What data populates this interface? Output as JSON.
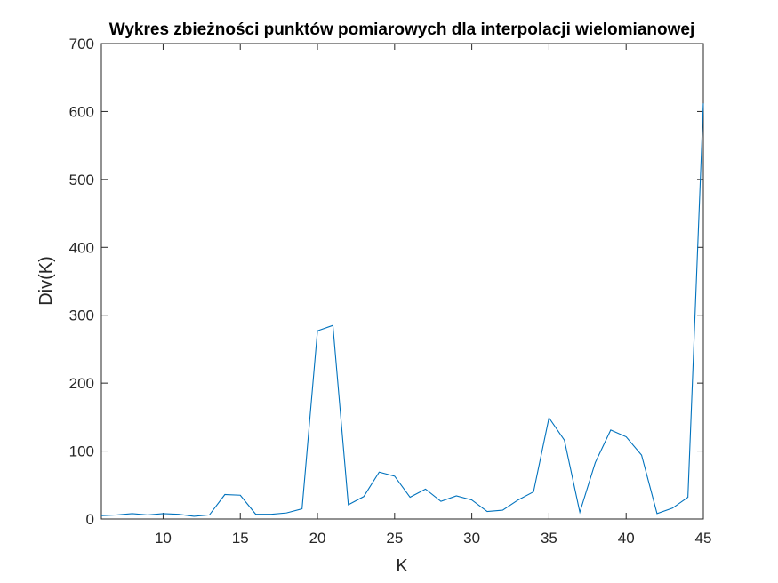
{
  "chart_data": {
    "type": "line",
    "title": "Wykres zbieżności punktów pomiarowych dla interpolacji wielomianowej",
    "xlabel": "K",
    "ylabel": "Div(K)",
    "xlim": [
      6,
      45
    ],
    "ylim": [
      0,
      700
    ],
    "xticks": [
      10,
      15,
      20,
      25,
      30,
      35,
      40,
      45
    ],
    "yticks": [
      0,
      100,
      200,
      300,
      400,
      500,
      600,
      700
    ],
    "grid": false,
    "series": [
      {
        "color": "#0072BD",
        "x": [
          6,
          7,
          8,
          9,
          10,
          11,
          12,
          13,
          14,
          15,
          16,
          17,
          18,
          19,
          20,
          21,
          22,
          23,
          24,
          25,
          26,
          27,
          28,
          29,
          30,
          31,
          32,
          33,
          34,
          35,
          36,
          37,
          38,
          39,
          40,
          41,
          42,
          43,
          44,
          45
        ],
        "y": [
          5,
          6,
          8,
          6,
          8,
          7,
          4,
          6,
          36,
          35,
          7,
          7,
          9,
          15,
          277,
          285,
          21,
          33,
          69,
          63,
          32,
          44,
          26,
          34,
          28,
          11,
          13,
          28,
          40,
          149,
          116,
          10,
          83,
          131,
          121,
          94,
          8,
          16,
          32,
          612
        ]
      }
    ]
  }
}
